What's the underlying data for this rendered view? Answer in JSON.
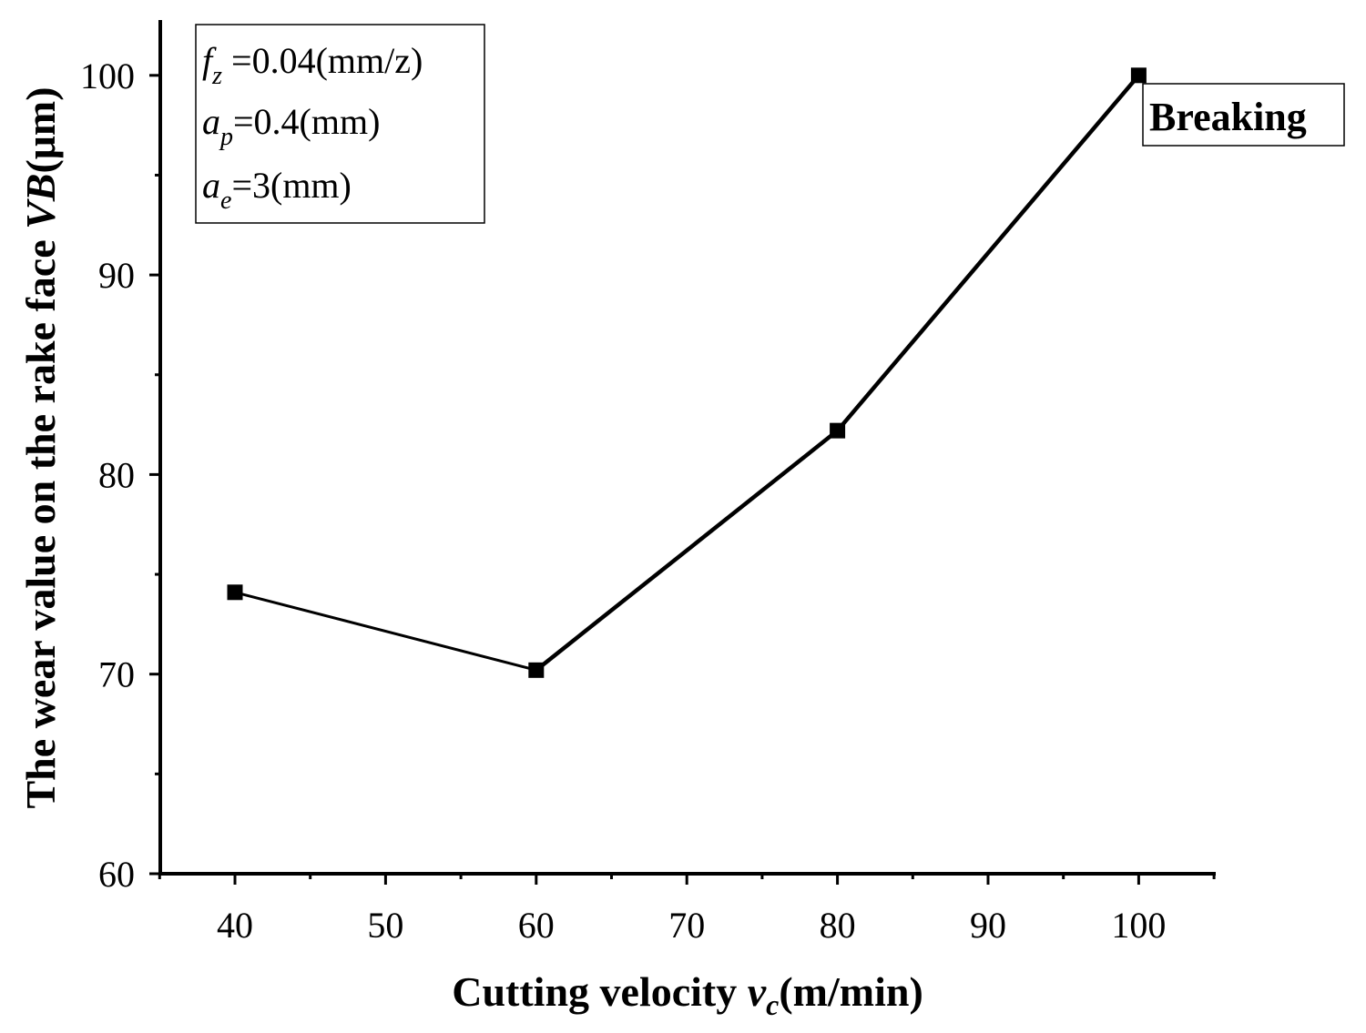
{
  "chart_data": {
    "type": "line",
    "title": "",
    "xlabel": {
      "prefix": "Cutting velocity ",
      "var": "v",
      "sub": "c",
      "suffix": "(m/min)"
    },
    "ylabel": {
      "prefix": "The wear value on the rake face ",
      "var": "VB",
      "suffix": "(μm)"
    },
    "xlim": [
      35,
      105
    ],
    "ylim": [
      60,
      103
    ],
    "xticks": [
      40,
      50,
      60,
      70,
      80,
      90,
      100
    ],
    "yticks": [
      60,
      70,
      80,
      90,
      100
    ],
    "series": [
      {
        "name": "VB",
        "x": [
          40,
          60,
          80,
          100
        ],
        "y": [
          74.1,
          70.2,
          82.2,
          100
        ],
        "color": "#000000",
        "marker": "square"
      }
    ],
    "parameters": [
      {
        "var": "f",
        "sub": "z",
        "text": " =0.04(mm/z)"
      },
      {
        "var": "a",
        "sub": "p",
        "text": "=0.4(mm)"
      },
      {
        "var": "a",
        "sub": "e",
        "text": "=3(mm)"
      }
    ],
    "annotation": {
      "text": "Breaking",
      "x": 100,
      "y": 100
    }
  }
}
